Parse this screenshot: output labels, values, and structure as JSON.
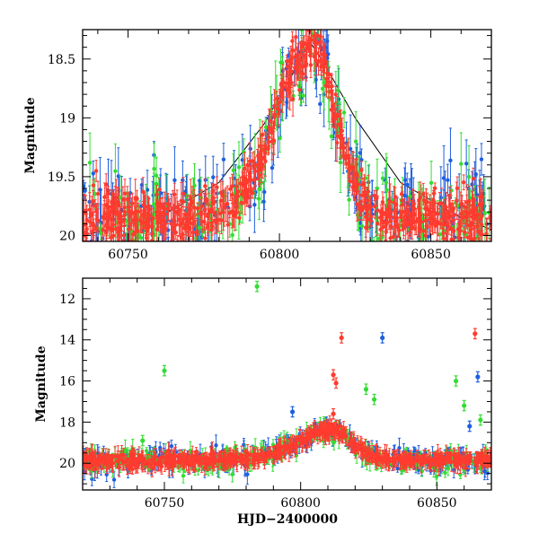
{
  "chart_data": [
    {
      "type": "scatter",
      "title": "",
      "xlabel": "",
      "ylabel": "Magnitude",
      "xlim": [
        60735,
        60870
      ],
      "ylim": [
        18.25,
        20.05
      ],
      "y_inverted": true,
      "x_ticks": [
        "60750",
        "60800",
        "60850"
      ],
      "y_ticks": [
        "18.5",
        "19",
        "19.5",
        "20"
      ],
      "grid": false,
      "legend": "none",
      "series": [
        {
          "color": "#1f5fe0",
          "marker": "circle with error bar"
        },
        {
          "color": "#33dd33",
          "marker": "circle with error bar"
        },
        {
          "color": "#ff3b2f",
          "marker": "circle with error bar"
        }
      ],
      "model": {
        "x": [
          60735,
          60760,
          60780,
          60795,
          60805,
          60810,
          60815,
          60825,
          60840,
          60860,
          60870
        ],
        "y": [
          20.0,
          19.85,
          19.55,
          19.05,
          18.6,
          18.35,
          18.55,
          19.0,
          19.55,
          19.85,
          19.95
        ]
      }
    },
    {
      "type": "scatter",
      "title": "",
      "xlabel": "HJD−2400000",
      "ylabel": "Magnitude",
      "xlim": [
        60720,
        60870
      ],
      "ylim": [
        11.0,
        21.3
      ],
      "y_inverted": true,
      "x_ticks": [
        "60750",
        "60800",
        "60850"
      ],
      "y_ticks": [
        "12",
        "14",
        "16",
        "18",
        "20"
      ],
      "grid": false,
      "legend": "none",
      "series": [
        {
          "color": "#1f5fe0",
          "marker": "circle with error bar"
        },
        {
          "color": "#33dd33",
          "marker": "circle with error bar"
        },
        {
          "color": "#ff3b2f",
          "marker": "circle with error bar"
        }
      ],
      "outliers": [
        {
          "series": 1,
          "x": 60784,
          "y": 11.4
        },
        {
          "series": 1,
          "x": 60750,
          "y": 15.5
        },
        {
          "series": 2,
          "x": 60812,
          "y": 15.7
        },
        {
          "series": 2,
          "x": 60813,
          "y": 16.1
        },
        {
          "series": 2,
          "x": 60815,
          "y": 13.9
        },
        {
          "series": 0,
          "x": 60830,
          "y": 13.9
        },
        {
          "series": 1,
          "x": 60824,
          "y": 16.4
        },
        {
          "series": 1,
          "x": 60827,
          "y": 16.9
        },
        {
          "series": 1,
          "x": 60857,
          "y": 16.0
        },
        {
          "series": 2,
          "x": 60864,
          "y": 13.7
        },
        {
          "series": 0,
          "x": 60865,
          "y": 15.8
        },
        {
          "series": 1,
          "x": 60860,
          "y": 17.2
        },
        {
          "series": 0,
          "x": 60797,
          "y": 17.5
        },
        {
          "series": 1,
          "x": 60866,
          "y": 17.9
        },
        {
          "series": 0,
          "x": 60862,
          "y": 18.2
        },
        {
          "series": 1,
          "x": 60742,
          "y": 18.9
        },
        {
          "series": 2,
          "x": 60812,
          "y": 17.6
        }
      ]
    }
  ]
}
